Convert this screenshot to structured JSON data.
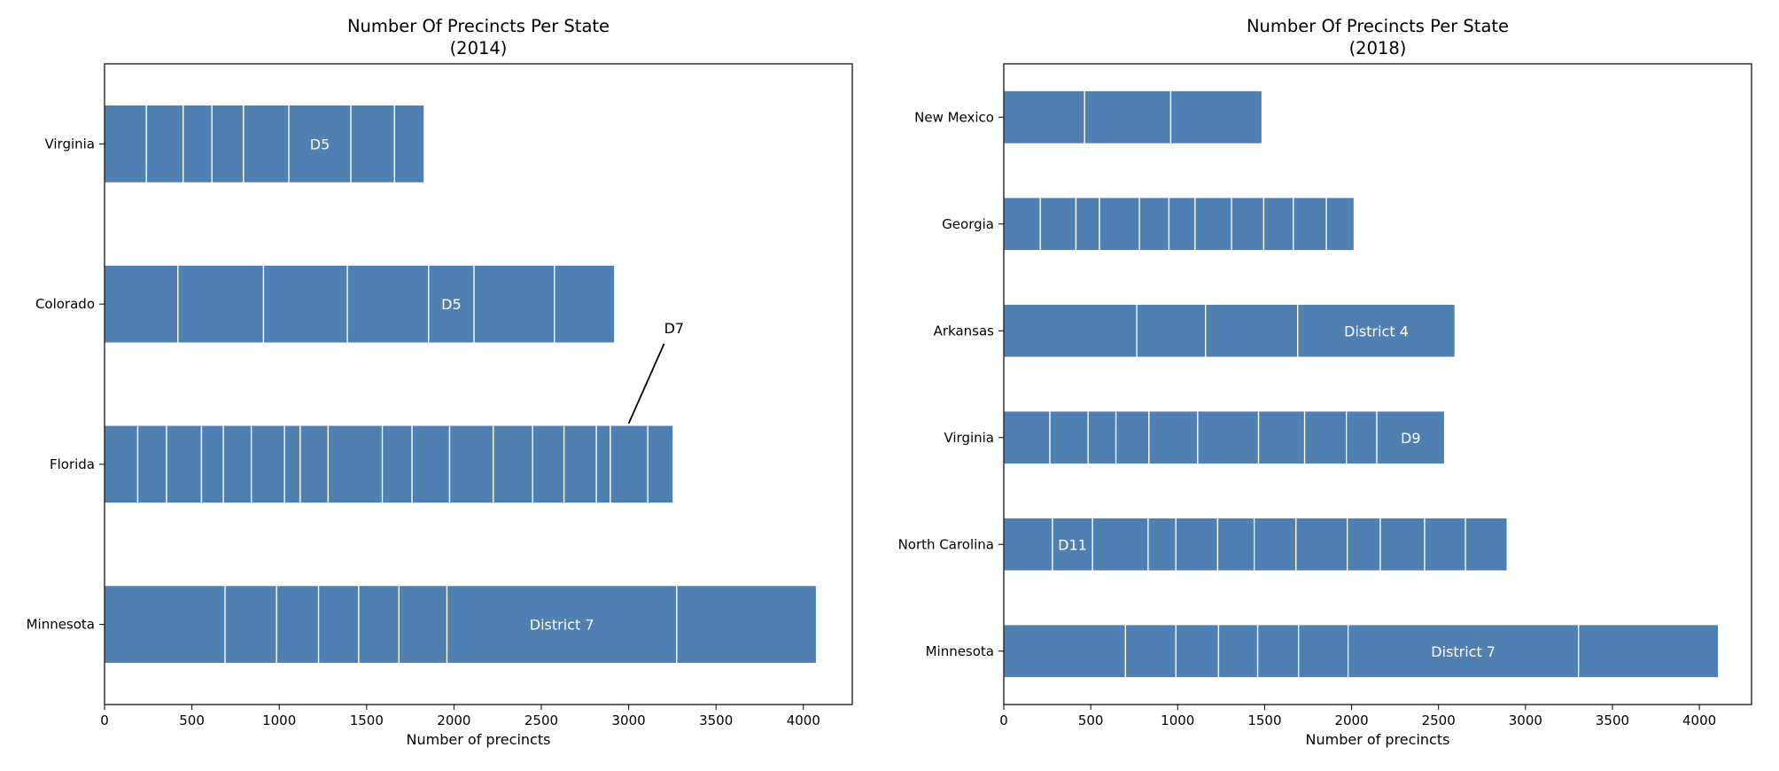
{
  "colors": {
    "bar": "#5080b1",
    "segment_edge": "#ffffff",
    "axis": "#000000"
  },
  "chart_data": [
    {
      "type": "bar",
      "orientation": "horizontal",
      "stacked_segments": true,
      "title": "Number Of Precincts Per State",
      "subtitle": "(2014)",
      "xlabel": "Number of precincts",
      "ylabel": "",
      "xlim": [
        0,
        4280
      ],
      "xticks": [
        0,
        500,
        1000,
        1500,
        2000,
        2500,
        3000,
        3500,
        4000
      ],
      "xtick_labels": [
        "0",
        "500",
        "1000",
        "1500",
        "2000",
        "2500",
        "3000",
        "3500",
        "4000"
      ],
      "grid": false,
      "categories": [
        "Virginia",
        "Colorado",
        "Florida",
        "Minnesota"
      ],
      "bars": [
        {
          "category": "Virginia",
          "boundaries": [
            0,
            240,
            450,
            615,
            795,
            1055,
            1410,
            1660,
            1830
          ],
          "labels": [
            {
              "segment": 5,
              "text": "D5"
            }
          ]
        },
        {
          "category": "Colorado",
          "boundaries": [
            0,
            420,
            910,
            1390,
            1855,
            2115,
            2575,
            2920
          ],
          "labels": [
            {
              "segment": 4,
              "text": "D5"
            }
          ]
        },
        {
          "category": "Florida",
          "boundaries": [
            0,
            190,
            355,
            555,
            680,
            840,
            1030,
            1120,
            1280,
            1590,
            1760,
            1975,
            2225,
            2450,
            2630,
            2815,
            2895,
            3110,
            3255
          ],
          "labels": []
        },
        {
          "category": "Minnesota",
          "boundaries": [
            0,
            690,
            985,
            1225,
            1455,
            1685,
            1960,
            3275,
            4075
          ],
          "labels": [
            {
              "segment": 6,
              "text": "District 7"
            }
          ]
        }
      ],
      "annotations": [
        {
          "text": "D7",
          "category": "Florida",
          "x": 3000
        }
      ]
    },
    {
      "type": "bar",
      "orientation": "horizontal",
      "stacked_segments": true,
      "title": "Number Of Precincts Per State",
      "subtitle": "(2018)",
      "xlabel": "Number of precincts",
      "ylabel": "",
      "xlim": [
        0,
        4300
      ],
      "xticks": [
        0,
        500,
        1000,
        1500,
        2000,
        2500,
        3000,
        3500,
        4000
      ],
      "xtick_labels": [
        "0",
        "500",
        "1000",
        "1500",
        "2000",
        "2500",
        "3000",
        "3500",
        "4000"
      ],
      "grid": false,
      "categories": [
        "New Mexico",
        "Georgia",
        "Arkansas",
        "Virginia",
        "North Carolina",
        "Minnesota"
      ],
      "bars": [
        {
          "category": "New Mexico",
          "boundaries": [
            0,
            465,
            960,
            1485
          ],
          "labels": []
        },
        {
          "category": "Georgia",
          "boundaries": [
            0,
            210,
            415,
            550,
            780,
            950,
            1100,
            1310,
            1495,
            1665,
            1855,
            2015
          ],
          "labels": []
        },
        {
          "category": "Arkansas",
          "boundaries": [
            0,
            765,
            1160,
            1690,
            2595
          ],
          "labels": [
            {
              "segment": 3,
              "text": "District 4"
            }
          ]
        },
        {
          "category": "Virginia",
          "boundaries": [
            0,
            265,
            485,
            645,
            835,
            1115,
            1465,
            1730,
            1970,
            2145,
            2535
          ],
          "labels": [
            {
              "segment": 9,
              "text": "D9"
            }
          ]
        },
        {
          "category": "North Carolina",
          "boundaries": [
            0,
            280,
            510,
            830,
            990,
            1230,
            1440,
            1680,
            1975,
            2165,
            2420,
            2655,
            2895
          ],
          "labels": [
            {
              "segment": 1,
              "text": "D11"
            }
          ]
        },
        {
          "category": "Minnesota",
          "boundaries": [
            0,
            700,
            990,
            1235,
            1460,
            1695,
            1980,
            3305,
            4110
          ],
          "labels": [
            {
              "segment": 6,
              "text": "District 7"
            }
          ]
        }
      ],
      "annotations": []
    }
  ]
}
